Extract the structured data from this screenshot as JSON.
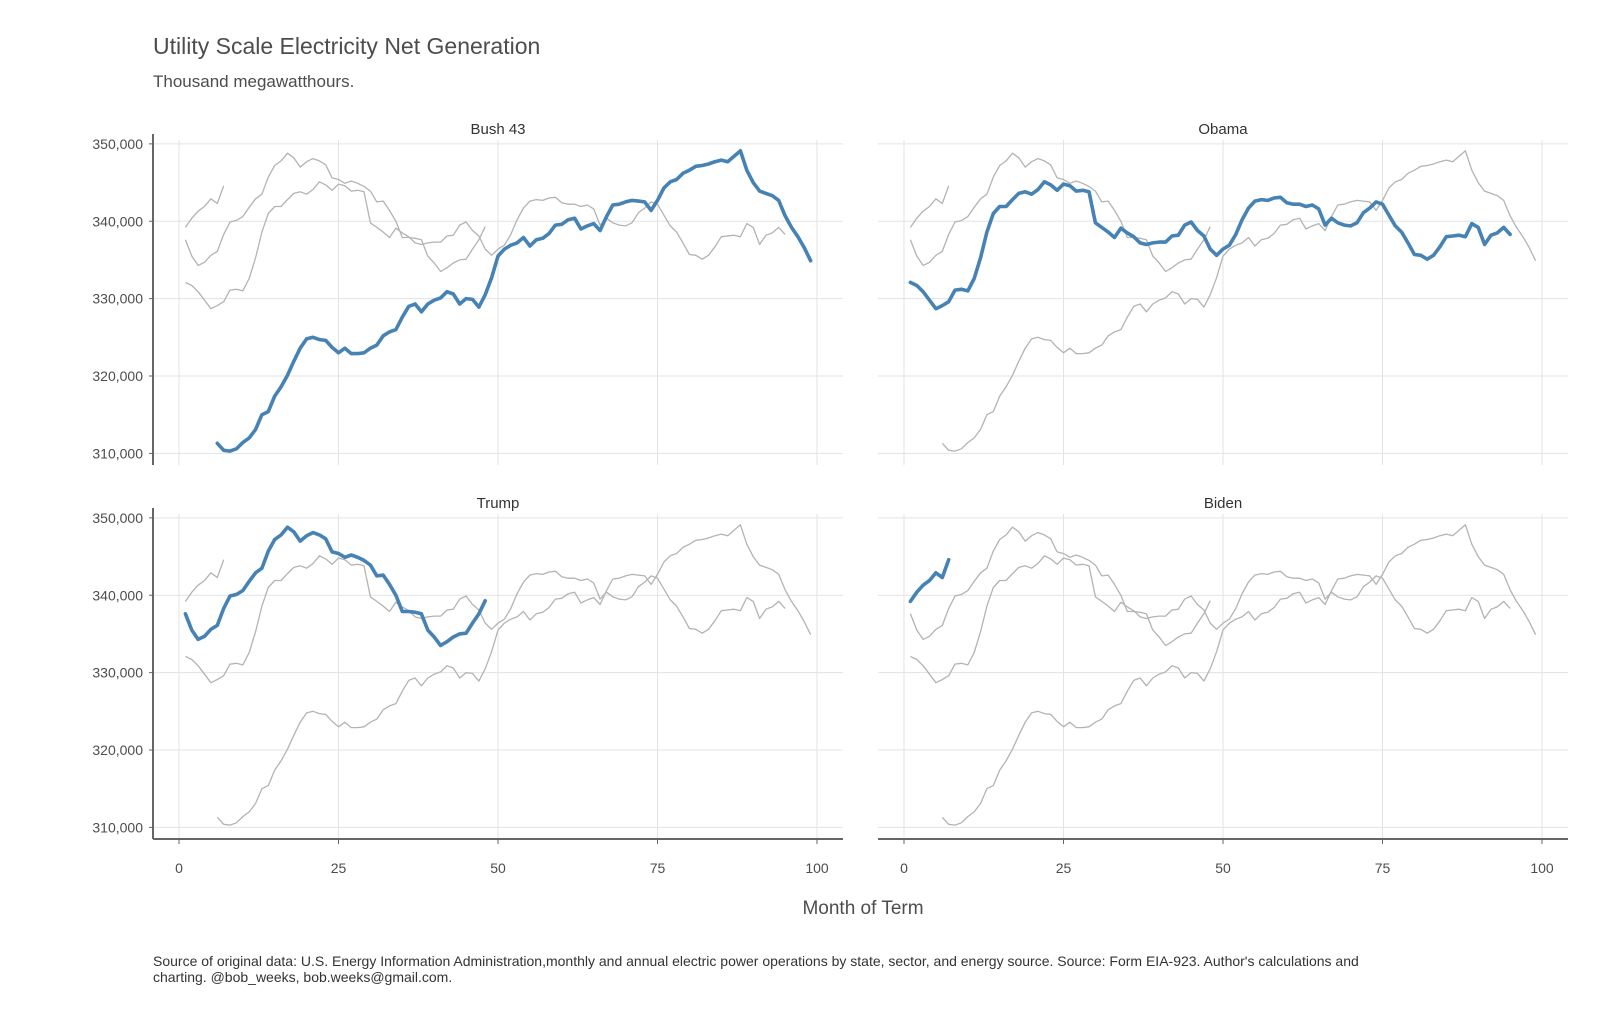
{
  "chart_data": {
    "type": "line",
    "title": "Utility Scale Electricity Net Generation",
    "subtitle": "Thousand megawatthours.",
    "xlabel": "Month of Term",
    "ylabel": "",
    "caption": "Source of original data: U.S. Energy Information Administration,monthly and annual electric power operations by state, sector, and energy source. Source: Form EIA-923. Author's calculations and charting. @bob_weeks, bob.weeks@gmail.com.",
    "xlim": [
      0,
      100
    ],
    "ylim": [
      308500,
      350500
    ],
    "x_ticks": [
      0,
      25,
      50,
      75,
      100
    ],
    "y_ticks": [
      310000,
      320000,
      330000,
      340000,
      350000
    ],
    "y_tick_labels": [
      "310,000",
      "320,000",
      "330,000",
      "340,000",
      "350,000"
    ],
    "grid": true,
    "highlight_color": "#4682b4",
    "context_color": "#b3b3b3",
    "facets": [
      "Bush 43",
      "Obama",
      "Trump",
      "Biden"
    ],
    "series": [
      {
        "name": "Bush 43",
        "x_start": 6,
        "values": [
          311300,
          310400,
          310300,
          310600,
          311400,
          312000,
          313100,
          315000,
          315400,
          317400,
          318600,
          320100,
          321900,
          323600,
          324800,
          325000,
          324700,
          324600,
          323700,
          323000,
          323600,
          322900,
          322900,
          323000,
          323600,
          324000,
          325200,
          325700,
          326000,
          327600,
          329000,
          329300,
          328300,
          329300,
          329800,
          330100,
          330900,
          330600,
          329300,
          330000,
          329900,
          328900,
          330500,
          332700,
          335500,
          336400,
          336900,
          337200,
          337900,
          336800,
          337600,
          337800,
          338400,
          339500,
          339600,
          340200,
          340400,
          339000,
          339400,
          339700,
          338800,
          340600,
          342100,
          342200,
          342500,
          342700,
          342600,
          342500,
          341400,
          342700,
          344300,
          345100,
          345400,
          346200,
          346600,
          347100,
          347200,
          347400,
          347700,
          347900,
          347700,
          348400,
          349100,
          346600,
          345000,
          343900,
          343600,
          343300,
          342700,
          340700,
          339200,
          338000,
          336600,
          334900
        ]
      },
      {
        "name": "Obama",
        "x_start": 1,
        "values": [
          332100,
          331700,
          330900,
          329800,
          328700,
          329100,
          329600,
          331100,
          331200,
          331000,
          332600,
          335300,
          338600,
          341000,
          341900,
          341900,
          342800,
          343600,
          343800,
          343500,
          344100,
          345100,
          344700,
          344000,
          344800,
          344600,
          343900,
          344000,
          343800,
          339800,
          339200,
          338600,
          337900,
          339100,
          338500,
          338000,
          337200,
          337000,
          337200,
          337300,
          337300,
          338100,
          338200,
          339500,
          339900,
          338800,
          338100,
          336400,
          335600,
          336400,
          336900,
          338300,
          340200,
          341700,
          342600,
          342800,
          342700,
          343000,
          343100,
          342400,
          342200,
          342200,
          341900,
          342100,
          341600,
          339500,
          340400,
          339800,
          339500,
          339400,
          339800,
          341100,
          341700,
          342500,
          342200,
          340800,
          339400,
          338600,
          337200,
          335700,
          335600,
          335100,
          335600,
          336700,
          338000,
          338100,
          338200,
          338000,
          339700,
          339200,
          337000,
          338200,
          338500,
          339200,
          338300
        ]
      },
      {
        "name": "Trump",
        "x_start": 1,
        "values": [
          337600,
          335500,
          334300,
          334700,
          335600,
          336100,
          338300,
          339900,
          340100,
          340600,
          341800,
          342900,
          343500,
          345700,
          347200,
          347800,
          348800,
          348200,
          347000,
          347700,
          348100,
          347800,
          347300,
          345600,
          345400,
          344900,
          345200,
          344900,
          344500,
          343900,
          342500,
          342600,
          341400,
          340000,
          337900,
          337900,
          337800,
          337600,
          335500,
          334600,
          333500,
          334000,
          334600,
          335000,
          335100,
          336400,
          337600,
          339300
        ]
      },
      {
        "name": "Biden",
        "x_start": 1,
        "values": [
          339200,
          340400,
          341300,
          341900,
          342900,
          342300,
          344600
        ]
      }
    ]
  }
}
